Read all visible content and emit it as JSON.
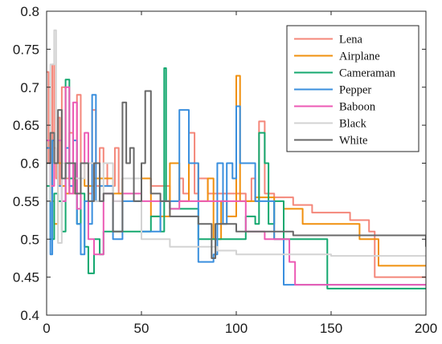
{
  "chart_data": {
    "type": "line",
    "title": "",
    "xlabel": "",
    "ylabel": "",
    "xlim": [
      0,
      200
    ],
    "ylim": [
      0.4,
      0.8
    ],
    "xticks": [
      0,
      50,
      100,
      150,
      200
    ],
    "yticks": [
      0.4,
      0.45,
      0.5,
      0.55,
      0.6,
      0.65,
      0.7,
      0.75,
      0.8
    ],
    "xtick_labels": [
      "0",
      "50",
      "100",
      "150",
      "200"
    ],
    "ytick_labels": [
      "0.4",
      "0.45",
      "0.5",
      "0.55",
      "0.6",
      "0.65",
      "0.7",
      "0.75",
      "0.8"
    ],
    "grid": false,
    "legend_position": "top-right",
    "line_shape": "step",
    "series": [
      {
        "name": "Lena",
        "color": "#f4877a",
        "x": [
          0,
          1,
          2,
          3,
          4,
          5,
          6,
          7,
          8,
          10,
          12,
          14,
          16,
          18,
          20,
          22,
          24,
          26,
          28,
          30,
          32,
          34,
          36,
          38,
          40,
          45,
          50,
          55,
          60,
          65,
          70,
          72,
          75,
          78,
          80,
          85,
          88,
          90,
          95,
          100,
          105,
          108,
          110,
          112,
          115,
          118,
          120,
          130,
          140,
          150,
          160,
          170,
          173,
          175,
          200
        ],
        "y": [
          0.72,
          0.6,
          0.56,
          0.73,
          0.62,
          0.58,
          0.66,
          0.57,
          0.7,
          0.58,
          0.64,
          0.56,
          0.69,
          0.58,
          0.6,
          0.56,
          0.67,
          0.57,
          0.62,
          0.6,
          0.57,
          0.57,
          0.62,
          0.56,
          0.58,
          0.58,
          0.58,
          0.57,
          0.57,
          0.55,
          0.58,
          0.56,
          0.64,
          0.56,
          0.58,
          0.56,
          0.56,
          0.56,
          0.56,
          0.56,
          0.55,
          0.58,
          0.55,
          0.655,
          0.56,
          0.56,
          0.555,
          0.545,
          0.535,
          0.535,
          0.525,
          0.51,
          0.45,
          0.45,
          0.45
        ]
      },
      {
        "name": "Airplane",
        "color": "#f0900e",
        "x": [
          0,
          2,
          4,
          6,
          8,
          10,
          12,
          15,
          18,
          20,
          25,
          30,
          35,
          40,
          45,
          50,
          55,
          60,
          65,
          70,
          75,
          80,
          85,
          88,
          92,
          95,
          100,
          102,
          105,
          110,
          115,
          120,
          125,
          135,
          145,
          155,
          165,
          175,
          200
        ],
        "y": [
          0.6,
          0.55,
          0.52,
          0.6,
          0.57,
          0.56,
          0.58,
          0.56,
          0.58,
          0.57,
          0.58,
          0.58,
          0.56,
          0.58,
          0.58,
          0.58,
          0.53,
          0.53,
          0.6,
          0.55,
          0.6,
          0.55,
          0.58,
          0.5,
          0.55,
          0.53,
          0.715,
          0.55,
          0.55,
          0.555,
          0.555,
          0.5,
          0.54,
          0.52,
          0.52,
          0.52,
          0.5,
          0.465,
          0.465
        ]
      },
      {
        "name": "Cameraman",
        "color": "#14a86f",
        "x": [
          0,
          2,
          4,
          6,
          8,
          10,
          12,
          14,
          16,
          18,
          20,
          22,
          25,
          28,
          30,
          35,
          40,
          45,
          50,
          55,
          60,
          62,
          63,
          65,
          70,
          80,
          90,
          100,
          105,
          110,
          112,
          115,
          117,
          120,
          125,
          130,
          140,
          148,
          200
        ],
        "y": [
          0.57,
          0.5,
          0.56,
          0.55,
          0.51,
          0.71,
          0.58,
          0.6,
          0.52,
          0.56,
          0.49,
          0.455,
          0.5,
          0.48,
          0.51,
          0.51,
          0.51,
          0.51,
          0.51,
          0.53,
          0.51,
          0.725,
          0.55,
          0.54,
          0.54,
          0.5,
          0.5,
          0.5,
          0.53,
          0.52,
          0.64,
          0.6,
          0.52,
          0.55,
          0.5,
          0.5,
          0.5,
          0.435,
          0.435
        ]
      },
      {
        "name": "Pepper",
        "color": "#3a8fde",
        "x": [
          0,
          2,
          3,
          4,
          6,
          8,
          10,
          12,
          14,
          16,
          18,
          20,
          22,
          24,
          26,
          28,
          30,
          35,
          40,
          45,
          50,
          55,
          60,
          65,
          70,
          75,
          80,
          85,
          88,
          90,
          93,
          95,
          98,
          100,
          102,
          105,
          110,
          115,
          120,
          125,
          130,
          140,
          150,
          200
        ],
        "y": [
          0.62,
          0.48,
          0.63,
          0.6,
          0.57,
          0.55,
          0.62,
          0.57,
          0.63,
          0.52,
          0.48,
          0.55,
          0.52,
          0.69,
          0.55,
          0.57,
          0.57,
          0.5,
          0.55,
          0.55,
          0.51,
          0.51,
          0.55,
          0.55,
          0.67,
          0.6,
          0.47,
          0.47,
          0.48,
          0.6,
          0.52,
          0.6,
          0.58,
          0.675,
          0.6,
          0.6,
          0.55,
          0.55,
          0.5,
          0.44,
          0.44,
          0.44,
          0.44,
          0.44
        ]
      },
      {
        "name": "Baboon",
        "color": "#ec5ab4",
        "x": [
          0,
          2,
          4,
          6,
          8,
          10,
          12,
          14,
          16,
          18,
          20,
          22,
          25,
          30,
          35,
          40,
          45,
          50,
          55,
          60,
          65,
          70,
          75,
          80,
          85,
          90,
          95,
          100,
          105,
          110,
          115,
          120,
          125,
          128,
          131,
          135,
          145,
          200
        ],
        "y": [
          0.63,
          0.57,
          0.6,
          0.63,
          0.55,
          0.7,
          0.56,
          0.68,
          0.54,
          0.6,
          0.64,
          0.5,
          0.48,
          0.56,
          0.55,
          0.56,
          0.56,
          0.55,
          0.55,
          0.55,
          0.54,
          0.55,
          0.55,
          0.55,
          0.55,
          0.55,
          0.55,
          0.55,
          0.51,
          0.51,
          0.5,
          0.5,
          0.5,
          0.47,
          0.44,
          0.44,
          0.44,
          0.44
        ]
      },
      {
        "name": "Black",
        "color": "#d3d3d3",
        "x": [
          0,
          2,
          4,
          5,
          6,
          8,
          10,
          15,
          20,
          25,
          30,
          35,
          40,
          45,
          50,
          55,
          60,
          65,
          70,
          75,
          80,
          85,
          90,
          100,
          110,
          130,
          150,
          200
        ],
        "y": [
          0.55,
          0.73,
          0.775,
          0.6,
          0.495,
          0.6,
          0.6,
          0.58,
          0.6,
          0.55,
          0.6,
          0.55,
          0.58,
          0.58,
          0.5,
          0.5,
          0.5,
          0.49,
          0.49,
          0.49,
          0.49,
          0.49,
          0.485,
          0.48,
          0.48,
          0.48,
          0.478,
          0.478
        ]
      },
      {
        "name": "White",
        "color": "#686868",
        "x": [
          0,
          2,
          4,
          6,
          8,
          10,
          12,
          15,
          18,
          20,
          22,
          25,
          28,
          30,
          35,
          40,
          42,
          44,
          46,
          50,
          52,
          55,
          60,
          65,
          70,
          75,
          80,
          85,
          87,
          89,
          90,
          92,
          95,
          100,
          110,
          120,
          130,
          140,
          150,
          200
        ],
        "y": [
          0.6,
          0.64,
          0.6,
          0.67,
          0.58,
          0.6,
          0.6,
          0.56,
          0.6,
          0.6,
          0.55,
          0.6,
          0.55,
          0.56,
          0.51,
          0.68,
          0.6,
          0.62,
          0.55,
          0.6,
          0.695,
          0.56,
          0.55,
          0.53,
          0.53,
          0.53,
          0.52,
          0.52,
          0.475,
          0.52,
          0.52,
          0.52,
          0.52,
          0.51,
          0.51,
          0.51,
          0.505,
          0.505,
          0.505,
          0.49
        ]
      }
    ]
  }
}
